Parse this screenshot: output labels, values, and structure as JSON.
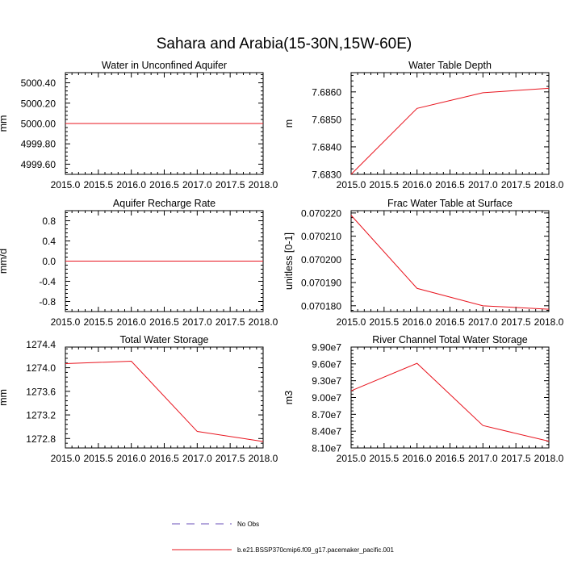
{
  "figure": {
    "title": "Sahara and Arabia(15-30N,15W-60E)"
  },
  "legend": {
    "items": [
      {
        "label": "No Obs",
        "color": "#6a4fb8",
        "dashed": true
      },
      {
        "label": "b.e21.BSSP370cmip6.f09_g17.pacemaker_pacific.001",
        "color": "#e8141e",
        "dashed": false
      }
    ]
  },
  "chart_data": [
    {
      "type": "line",
      "title": "Water in Unconfined Aquifer",
      "ylabel": "mm",
      "xlim": [
        2015.0,
        2018.0
      ],
      "ylim": [
        4999.5,
        5000.5
      ],
      "xticks": [
        "2015.0",
        "2015.5",
        "2016.0",
        "2016.5",
        "2017.0",
        "2017.5",
        "2018.0"
      ],
      "yticks": [
        {
          "v": 4999.6,
          "label": "4999.60"
        },
        {
          "v": 4999.8,
          "label": "4999.80"
        },
        {
          "v": 5000.0,
          "label": "5000.00"
        },
        {
          "v": 5000.2,
          "label": "5000.20"
        },
        {
          "v": 5000.4,
          "label": "5000.40"
        }
      ],
      "series": [
        {
          "color": "#e8141e",
          "x": [
            2015.0,
            2016.0,
            2017.0,
            2018.0
          ],
          "y": [
            5000.0,
            5000.0,
            5000.0,
            5000.0
          ]
        }
      ]
    },
    {
      "type": "line",
      "title": "Water Table Depth",
      "ylabel": "m",
      "xlim": [
        2015.0,
        2018.0
      ],
      "ylim": [
        7.683,
        7.6867
      ],
      "xticks": [
        "2015.0",
        "2015.5",
        "2016.0",
        "2016.5",
        "2017.0",
        "2017.5",
        "2018.0"
      ],
      "yticks": [
        {
          "v": 7.683,
          "label": "7.6830"
        },
        {
          "v": 7.684,
          "label": "7.6840"
        },
        {
          "v": 7.685,
          "label": "7.6850"
        },
        {
          "v": 7.686,
          "label": "7.6860"
        }
      ],
      "series": [
        {
          "color": "#e8141e",
          "x": [
            2015.0,
            2016.0,
            2017.0,
            2018.0
          ],
          "y": [
            7.683,
            7.6854,
            7.68597,
            7.68613
          ]
        }
      ]
    },
    {
      "type": "line",
      "title": "Aquifer Recharge Rate",
      "ylabel": "mm/d",
      "xlim": [
        2015.0,
        2018.0
      ],
      "ylim": [
        -1.0,
        1.0
      ],
      "xticks": [
        "2015.0",
        "2015.5",
        "2016.0",
        "2016.5",
        "2017.0",
        "2017.5",
        "2018.0"
      ],
      "yticks": [
        {
          "v": -0.8,
          "label": "-0.8"
        },
        {
          "v": -0.4,
          "label": "-0.4"
        },
        {
          "v": 0.0,
          "label": "0.0"
        },
        {
          "v": 0.4,
          "label": "0.4"
        },
        {
          "v": 0.8,
          "label": "0.8"
        }
      ],
      "series": [
        {
          "color": "#e8141e",
          "x": [
            2015.0,
            2016.0,
            2017.0,
            2018.0
          ],
          "y": [
            0.0,
            0.0,
            0.0,
            0.0
          ]
        }
      ]
    },
    {
      "type": "line",
      "title": "Frac Water Table at Surface",
      "ylabel": "unitless [0-1]",
      "xlim": [
        2015.0,
        2018.0
      ],
      "ylim": [
        0.0701775,
        0.070221
      ],
      "xticks": [
        "2015.0",
        "2015.5",
        "2016.0",
        "2016.5",
        "2017.0",
        "2017.5",
        "2018.0"
      ],
      "yticks": [
        {
          "v": 0.07018,
          "label": "0.070180"
        },
        {
          "v": 0.07019,
          "label": "0.070190"
        },
        {
          "v": 0.0702,
          "label": "0.070200"
        },
        {
          "v": 0.07021,
          "label": "0.070210"
        },
        {
          "v": 0.07022,
          "label": "0.070220"
        }
      ],
      "series": [
        {
          "color": "#e8141e",
          "x": [
            2015.0,
            2016.0,
            2017.0,
            2018.0
          ],
          "y": [
            0.070219,
            0.0701875,
            0.07018,
            0.0701785
          ]
        }
      ]
    },
    {
      "type": "line",
      "title": "Total Water Storage",
      "ylabel": "mm",
      "xlim": [
        2015.0,
        2018.0
      ],
      "ylim": [
        1272.64,
        1274.35
      ],
      "xticks": [
        "2015.0",
        "2015.5",
        "2016.0",
        "2016.5",
        "2017.0",
        "2017.5",
        "2018.0"
      ],
      "yticks": [
        {
          "v": 1272.8,
          "label": "1272.8"
        },
        {
          "v": 1273.2,
          "label": "1273.2"
        },
        {
          "v": 1273.6,
          "label": "1273.6"
        },
        {
          "v": 1274.0,
          "label": "1274.0"
        },
        {
          "v": 1274.4,
          "label": "1274.4"
        }
      ],
      "series": [
        {
          "color": "#e8141e",
          "x": [
            2015.0,
            2016.0,
            2017.0,
            2018.0
          ],
          "y": [
            1274.07,
            1274.11,
            1272.92,
            1272.75
          ]
        }
      ]
    },
    {
      "type": "line",
      "title": "River Channel Total Water Storage",
      "ylabel": "m3",
      "xlim": [
        2015.0,
        2018.0
      ],
      "ylim": [
        81000000,
        99000000
      ],
      "xticks": [
        "2015.0",
        "2015.5",
        "2016.0",
        "2016.5",
        "2017.0",
        "2017.5",
        "2018.0"
      ],
      "yticks": [
        {
          "v": 81000000,
          "label": "8.10e7"
        },
        {
          "v": 84000000,
          "label": "8.40e7"
        },
        {
          "v": 87000000,
          "label": "8.70e7"
        },
        {
          "v": 90000000,
          "label": "9.00e7"
        },
        {
          "v": 93000000,
          "label": "9.30e7"
        },
        {
          "v": 96000000,
          "label": "9.60e7"
        },
        {
          "v": 99000000,
          "label": "9.90e7"
        }
      ],
      "series": [
        {
          "color": "#e8141e",
          "x": [
            2015.0,
            2016.0,
            2017.0,
            2018.0
          ],
          "y": [
            91200000,
            96100000,
            85000000,
            82200000
          ]
        }
      ]
    }
  ]
}
